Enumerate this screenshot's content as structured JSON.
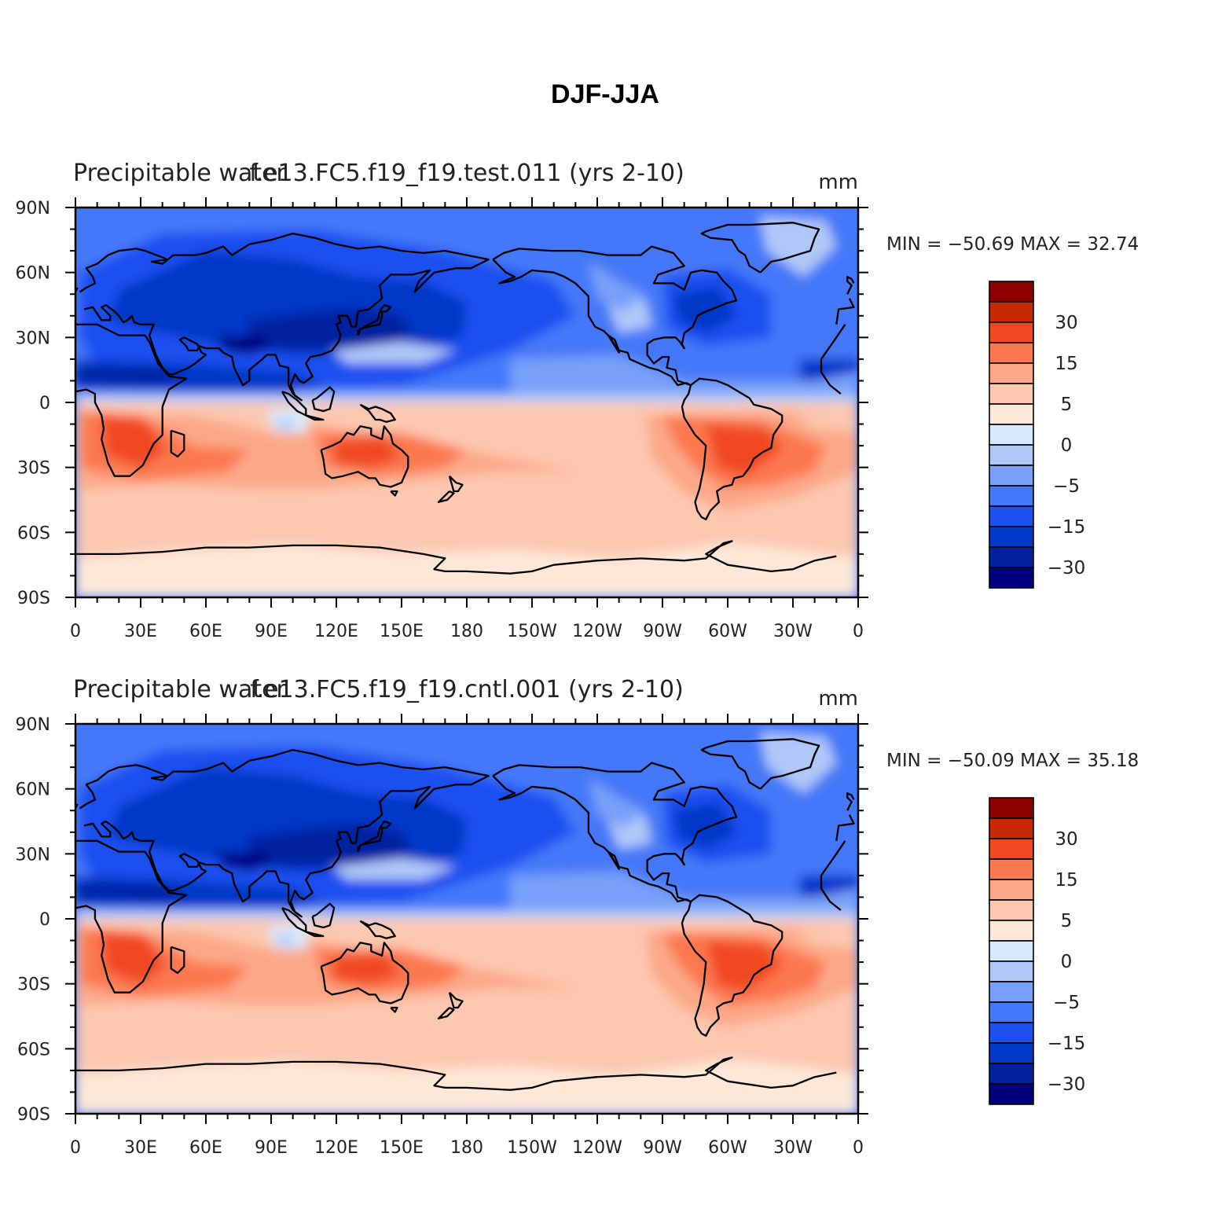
{
  "figure": {
    "title": "DJF-JJA",
    "colors": {
      "levels": [
        "#00007f",
        "#0020a0",
        "#0038c8",
        "#1c50f0",
        "#4478f8",
        "#78a0f8",
        "#b0c8f8",
        "#d8e8fc",
        "#fde8d8",
        "#fcc8b0",
        "#fca888",
        "#fc7850",
        "#f04820",
        "#c82800",
        "#8c0000"
      ]
    }
  },
  "panels": [
    {
      "left_title": "Precipitable water",
      "center_title": "f.e13.FC5.f19_f19.test.011 (yrs 2-10)",
      "units": "mm",
      "stats": "MIN = −50.69  MAX =   32.74"
    },
    {
      "left_title": "Precipitable water",
      "center_title": "f.e13.FC5.f19_f19.cntl.001 (yrs 2-10)",
      "units": "mm",
      "stats": "MIN = −50.09  MAX =   35.18"
    }
  ],
  "axes": {
    "x_ticks": [
      "0",
      "30E",
      "60E",
      "90E",
      "120E",
      "150E",
      "180",
      "150W",
      "120W",
      "90W",
      "60W",
      "30W",
      "0"
    ],
    "y_ticks": [
      "90N",
      "60N",
      "30N",
      "0",
      "30S",
      "60S",
      "90S"
    ]
  },
  "colorbar": {
    "labels": [
      "30",
      "15",
      "5",
      "0",
      "−5",
      "−15",
      "−30"
    ]
  },
  "chart_data": [
    {
      "type": "heatmap",
      "title": "f.e13.FC5.f19_f19.test.011 (yrs 2-10)",
      "variable": "Precipitable water",
      "units": "mm",
      "xlabel": "",
      "ylabel": "",
      "xlim": [
        0,
        360
      ],
      "ylim": [
        -90,
        90
      ],
      "min": -50.69,
      "max": 32.74,
      "contour_levels": [
        -40,
        -30,
        -20,
        -15,
        -10,
        -5,
        -2,
        0,
        2,
        5,
        10,
        15,
        20,
        30,
        40
      ],
      "pattern": "Northern hemisphere negative (blue), southern hemisphere positive (red); strongest negatives over South Asia/NW Pacific, strongest positives over southern Africa, Australia and South America"
    },
    {
      "type": "heatmap",
      "title": "f.e13.FC5.f19_f19.cntl.001 (yrs 2-10)",
      "variable": "Precipitable water",
      "units": "mm",
      "xlabel": "",
      "ylabel": "",
      "xlim": [
        0,
        360
      ],
      "ylim": [
        -90,
        90
      ],
      "min": -50.09,
      "max": 35.18,
      "contour_levels": [
        -40,
        -30,
        -20,
        -15,
        -10,
        -5,
        -2,
        0,
        2,
        5,
        10,
        15,
        20,
        30,
        40
      ],
      "pattern": "Northern hemisphere negative (blue), southern hemisphere positive (red); strongest negatives over South Asia/NW Pacific, strongest positives over southern Africa, Australia and South America"
    }
  ]
}
